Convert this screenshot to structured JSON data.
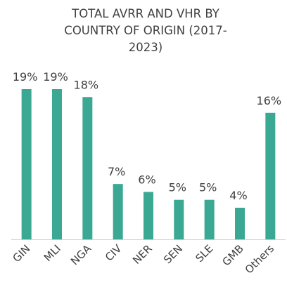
{
  "chart_data": {
    "type": "bar",
    "title": "TOTAL AVRR AND VHR BY COUNTRY OF ORIGIN (2017-2023)",
    "categories": [
      "GIN",
      "MLI",
      "NGA",
      "CIV",
      "NER",
      "SEN",
      "SLE",
      "GMB",
      "Others"
    ],
    "values": [
      19,
      19,
      18,
      7,
      6,
      5,
      5,
      4,
      16
    ],
    "value_labels": [
      "19%",
      "19%",
      "18%",
      "7%",
      "6%",
      "5%",
      "5%",
      "4%",
      "16%"
    ],
    "color": "#3aa892"
  }
}
